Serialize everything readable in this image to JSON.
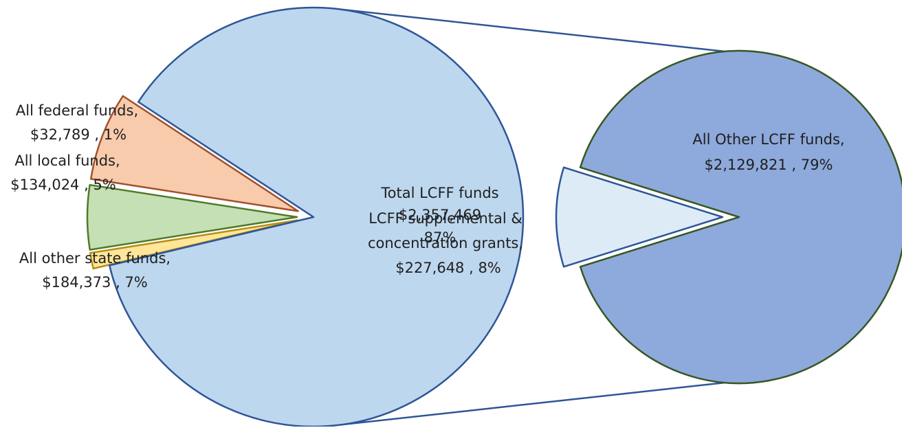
{
  "chart_data": {
    "type": "pie",
    "subtype": "pie-of-pie",
    "main_pie": {
      "slices": [
        {
          "label": "All federal funds",
          "value": 32789,
          "value_text": "$32,789",
          "percent_text": "1%",
          "color": "#FFE699",
          "border": "#B58F12"
        },
        {
          "label": "All local funds",
          "value": 134024,
          "value_text": "$134,024",
          "percent_text": "5%",
          "color": "#C5E0B4",
          "border": "#4F7A28"
        },
        {
          "label": "All other state funds",
          "value": 184373,
          "value_text": "$184,373",
          "percent_text": "7%",
          "color": "#F8CBAD",
          "border": "#A0512A"
        },
        {
          "label": "Total LCFF funds",
          "value": 2357469,
          "value_text": "$2,357,469",
          "percent_text": "87%",
          "color": "#BDD7EE",
          "border": "#2F5597"
        }
      ]
    },
    "secondary_pie": {
      "slices": [
        {
          "label": "LCFF supplemental & concentration grants",
          "value": 227648,
          "value_text": "$227,648",
          "percent_text": "8%",
          "color": "#DDEBF7",
          "border": "#2F5597"
        },
        {
          "label": "All Other LCFF funds",
          "value": 2129821,
          "value_text": "$2,129,821",
          "percent_text": "79%",
          "color": "#8EA9DB",
          "border": "#375623"
        }
      ]
    },
    "connector_color": "#2F5597"
  },
  "labels": {
    "federal": {
      "line1": "All federal funds,",
      "line2": "$32,789 , 1%"
    },
    "local": {
      "line1": "All local funds,",
      "line2": "$134,024 , 5%"
    },
    "state": {
      "line1": "All other state funds,",
      "line2": "$184,373 , 7%"
    },
    "total": {
      "line1": "Total LCFF funds",
      "line2": "$2,357,469",
      "line3": "87%"
    },
    "supplemental": {
      "line1": "LCFF supplemental &",
      "line2": "concentration grants,",
      "line3": "$227,648 , 8%"
    },
    "other_lcff": {
      "line1": "All Other LCFF funds,",
      "line2": "$2,129,821 , 79%"
    }
  }
}
